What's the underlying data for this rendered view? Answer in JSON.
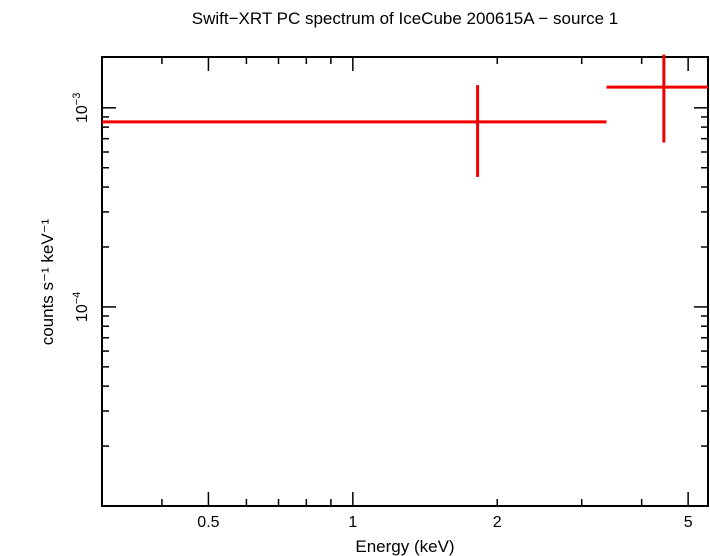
{
  "chart_data": {
    "type": "scatter",
    "title": "Swift−XRT PC spectrum of IceCube 200615A − source 1",
    "xlabel": "Energy (keV)",
    "ylabel": "counts s⁻¹ keV⁻¹",
    "xscale": "log",
    "yscale": "log",
    "xlim": [
      0.3,
      5.5
    ],
    "ylim": [
      1e-05,
      0.0018
    ],
    "x_ticks": [
      {
        "value": 0.5,
        "label": "0.5"
      },
      {
        "value": 1,
        "label": "1"
      },
      {
        "value": 2,
        "label": "2"
      },
      {
        "value": 5,
        "label": "5"
      }
    ],
    "y_ticks": [
      {
        "value": 0.001,
        "label_base": "10",
        "label_exp": "−3"
      },
      {
        "value": 0.0001,
        "label_base": "10",
        "label_exp": "−4"
      }
    ],
    "series": [
      {
        "name": "source 1",
        "color": "#ee0000",
        "points": [
          {
            "x": 1.82,
            "x_lo": 0.3,
            "x_hi": 3.38,
            "y": 0.00085,
            "y_lo": 0.00045,
            "y_hi": 0.0013
          },
          {
            "x": 4.45,
            "x_lo": 3.38,
            "x_hi": 5.5,
            "y": 0.00127,
            "y_lo": 0.00067,
            "y_hi": 0.00185
          }
        ]
      }
    ]
  }
}
